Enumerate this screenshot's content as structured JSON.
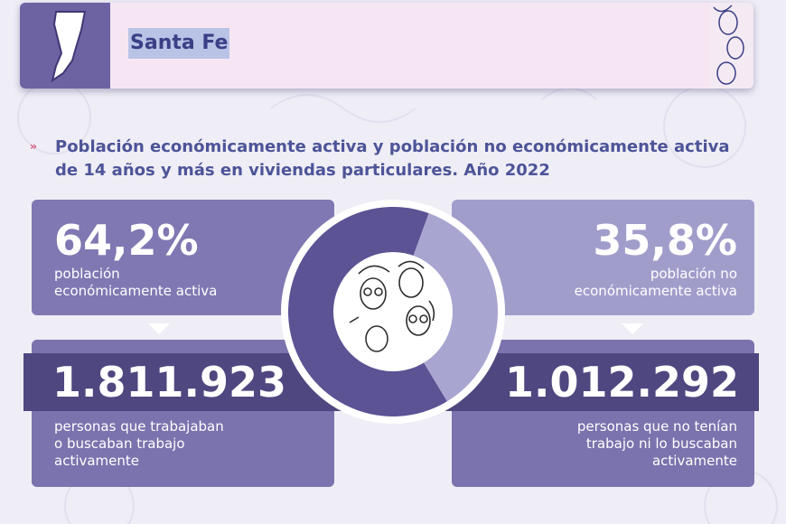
{
  "header": {
    "title": "Santa Fe",
    "map_icon": "santa-fe-map-icon",
    "faces_icon": "faces-illustration-icon"
  },
  "colors": {
    "active": "#5b5394",
    "inactive": "#a9a5d1",
    "title": "#4d5498",
    "bullet": "#d2507b"
  },
  "chart_data": {
    "type": "pie",
    "title": "Población económicamente activa y población no económicamente activa de 14 años y más en viviendas particulares. Año 2022",
    "slices": [
      {
        "pct": 64.2,
        "pct_label": "64,2%",
        "label": "población económicamente activa",
        "label_lines": [
          "población",
          "económicamente activa"
        ],
        "count": 1811923,
        "count_label": "1.811.923",
        "count_desc_lines": [
          "personas que trabajaban",
          "o buscaban trabajo",
          "activamente"
        ]
      },
      {
        "pct": 35.8,
        "pct_label": "35,8%",
        "label": "población no económicamente activa",
        "label_lines": [
          "población no",
          "económicamente activa"
        ],
        "count": 1012292,
        "count_label": "1.012.292",
        "count_desc_lines": [
          "personas que no tenían",
          "trabajo ni lo buscaban",
          "activamente"
        ]
      }
    ]
  }
}
